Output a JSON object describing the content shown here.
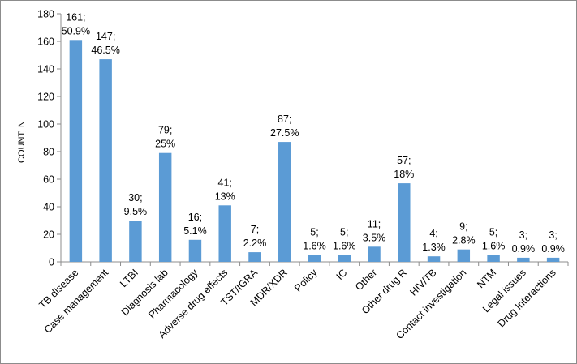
{
  "chart_data": {
    "type": "bar",
    "title": "",
    "xlabel": "",
    "ylabel": "COUNT; N",
    "ylim": [
      0,
      180
    ],
    "yticks": [
      0,
      20,
      40,
      60,
      80,
      100,
      120,
      140,
      160,
      180
    ],
    "grid": false,
    "legend": "none",
    "bar_color": "#5b9bd5",
    "categories": [
      "TB disease",
      "Case management",
      "LTBI",
      "Diagnosis lab",
      "Pharmacology",
      "Adverse drug effects",
      "TST/IGRA",
      "MDR/XDR",
      "Policy",
      "IC",
      "Other",
      "Other drug R",
      "HIV/TB",
      "Contact investigation",
      "NTM",
      "Legal issues",
      "Drug Interactions"
    ],
    "values": [
      161,
      147,
      30,
      79,
      16,
      41,
      7,
      87,
      5,
      5,
      11,
      57,
      4,
      9,
      5,
      3,
      3
    ],
    "data_labels": [
      [
        "161;",
        "50.9%"
      ],
      [
        "147;",
        "46.5%"
      ],
      [
        "30;",
        "9.5%"
      ],
      [
        "79;",
        "25%"
      ],
      [
        "16;",
        "5.1%"
      ],
      [
        "41;",
        "13%"
      ],
      [
        "7;",
        "2.2%"
      ],
      [
        "87;",
        "27.5%"
      ],
      [
        "5;",
        "1.6%"
      ],
      [
        "5;",
        "1.6%"
      ],
      [
        "11;",
        "3.5%"
      ],
      [
        "57;",
        "18%"
      ],
      [
        "4;",
        "1.3%"
      ],
      [
        "9;",
        "2.8%"
      ],
      [
        "5;",
        "1.6%"
      ],
      [
        "3;",
        "0.9%"
      ],
      [
        "3;",
        "0.9%"
      ]
    ]
  }
}
